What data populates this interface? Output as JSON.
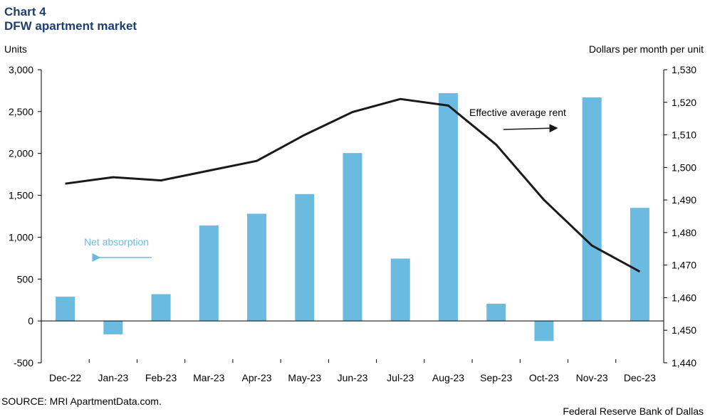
{
  "header": {
    "chart_label": "Chart 4",
    "title": "DFW apartment market",
    "left_axis_label": "Units",
    "right_axis_label": "Dollars per month  per unit"
  },
  "footer": {
    "source": "SOURCE: MRI ApartmentData.com.",
    "credit": "Federal Reserve Bank of Dallas"
  },
  "colors": {
    "bar": "#6bbbe1",
    "line": "#1a1a1a",
    "bar_label": "#6bbbe1",
    "title": "#1f3f6d"
  },
  "chart_data": {
    "type": "bar",
    "categories": [
      "Dec-22",
      "Jan-23",
      "Feb-23",
      "Mar-23",
      "Apr-23",
      "May-23",
      "Jun-23",
      "Jul-23",
      "Aug-23",
      "Sep-23",
      "Oct-23",
      "Nov-23",
      "Dec-23"
    ],
    "series": [
      {
        "name": "Net absorption",
        "type": "bar",
        "axis": "left",
        "values": [
          290,
          -160,
          320,
          1140,
          1280,
          1515,
          2005,
          745,
          2720,
          205,
          -240,
          2670,
          1350
        ]
      },
      {
        "name": "Effective average rent",
        "type": "line",
        "axis": "right",
        "values": [
          1495,
          1497,
          1496,
          1499,
          1502,
          1510,
          1517,
          1521,
          1519,
          1507,
          1490,
          1476,
          1468
        ]
      }
    ],
    "ylim_left": [
      -500,
      3000
    ],
    "yticks_left": [
      "3,000",
      "2,500",
      "2,000",
      "1,500",
      "1,000",
      "500",
      "0",
      "-500"
    ],
    "ylim_right": [
      1440,
      1530
    ],
    "yticks_right": [
      "1,530",
      "1,520",
      "1,510",
      "1,500",
      "1,490",
      "1,480",
      "1,470",
      "1,460",
      "1,450",
      "1,440"
    ],
    "ylabel_left": "Units",
    "ylabel_right": "Dollars per month  per unit",
    "annotations": [
      "Net absorption",
      "Effective average rent"
    ],
    "grid": false
  }
}
